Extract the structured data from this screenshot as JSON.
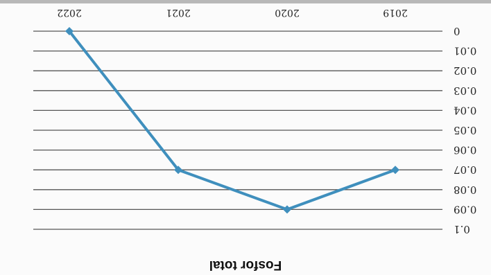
{
  "chart_data": {
    "type": "line",
    "title": "Fosfor total",
    "orientation": "rotated 180 degrees",
    "categories": [
      "2019",
      "2020",
      "2021",
      "2022"
    ],
    "series": [
      {
        "values": [
          0.07,
          0.09,
          0.07,
          0.0
        ]
      }
    ],
    "ylim": [
      0,
      0.1
    ],
    "y_ticks": [
      "0",
      "0.01",
      "0.02",
      "0.03",
      "0.04",
      "0.05",
      "0.06",
      "0.07",
      "0.08",
      "0.09",
      "0.1"
    ],
    "grid": true,
    "line_color": "#3f8fbd",
    "marker": "diamond"
  }
}
